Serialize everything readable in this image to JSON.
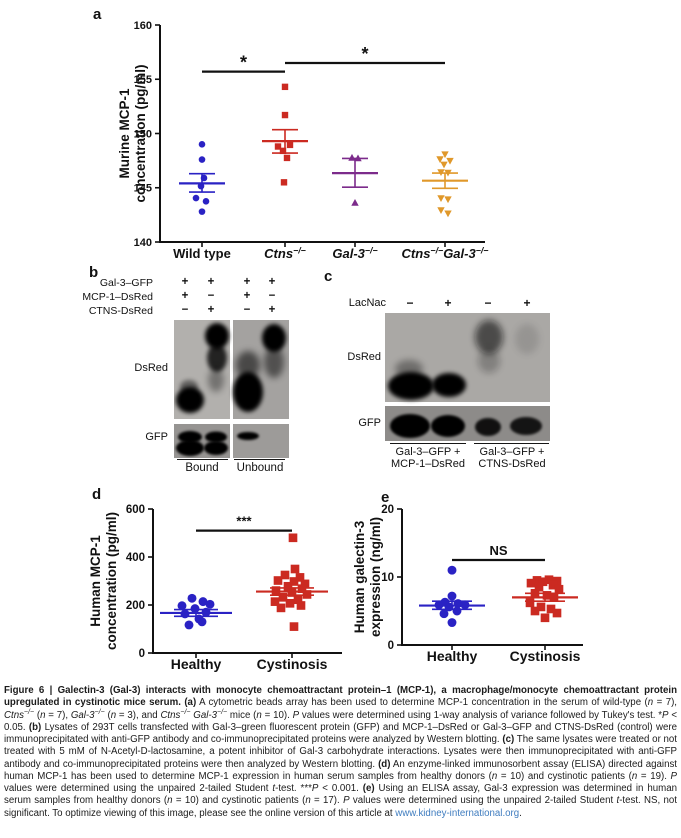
{
  "figure": {
    "panels": {
      "a": "a",
      "b": "b",
      "c": "c",
      "d": "d",
      "e": "e"
    }
  },
  "chart_data": [
    {
      "id": "a",
      "type": "scatter",
      "title": "",
      "ylabel_lines": [
        "Murine MCP-1",
        "concentration (pg/ml)"
      ],
      "ylabel": "Murine MCP-1 concentration (pg/ml)",
      "ylim": [
        140,
        160
      ],
      "yticks": [
        140,
        145,
        150,
        155,
        160
      ],
      "grid": false,
      "groups": [
        {
          "name": "Wild type",
          "label_segments": [
            {
              "t": "Wild type"
            }
          ],
          "marker": "circle",
          "color": "#2a22c4",
          "n": 7,
          "points": [
            [
              0,
              149.0
            ],
            [
              0,
              147.6
            ],
            [
              2,
              145.9
            ],
            [
              -1,
              145.15
            ],
            [
              -6,
              144.05
            ],
            [
              4,
              143.75
            ],
            [
              0,
              142.8
            ]
          ],
          "mean": 145.4,
          "err_lo": 144.6,
          "err_hi": 146.3
        },
        {
          "name": "Ctns-/-",
          "label_segments": [
            {
              "t": "Ctns",
              "i": true
            },
            {
              "t": "−/−",
              "i": true,
              "sup": true
            }
          ],
          "marker": "square",
          "color": "#cb2a21",
          "n": 7,
          "points": [
            [
              0,
              154.3
            ],
            [
              0,
              151.7
            ],
            [
              -7,
              148.8
            ],
            [
              5,
              148.95
            ],
            [
              -2,
              148.4
            ],
            [
              2,
              147.75
            ],
            [
              -1,
              145.5
            ]
          ],
          "mean": 149.3,
          "err_lo": 148.2,
          "err_hi": 150.35
        },
        {
          "name": "Gal-3-/-",
          "label_segments": [
            {
              "t": "Gal-3",
              "i": true
            },
            {
              "t": "−/−",
              "i": true,
              "sup": true
            }
          ],
          "marker": "triangle-up",
          "color": "#7c2b8b",
          "n": 3,
          "points": [
            [
              -3,
              147.75
            ],
            [
              3,
              147.7
            ],
            [
              0,
              143.6
            ]
          ],
          "mean": 146.35,
          "err_lo": 145.05,
          "err_hi": 147.7
        },
        {
          "name": "Ctns-/-Gal-3-/-",
          "label_segments": [
            {
              "t": "Ctns",
              "i": true
            },
            {
              "t": "−/−",
              "i": true,
              "sup": true
            },
            {
              "t": "Gal-3",
              "i": true
            },
            {
              "t": "−/−",
              "i": true,
              "sup": true
            }
          ],
          "marker": "triangle-down",
          "color": "#e0982a",
          "n": 10,
          "points": [
            [
              0,
              148.1
            ],
            [
              -5,
              147.65
            ],
            [
              5,
              147.5
            ],
            [
              -1,
              147.15
            ],
            [
              -4,
              146.45
            ],
            [
              3,
              146.4
            ],
            [
              -4,
              144.05
            ],
            [
              3,
              143.95
            ],
            [
              -4,
              142.95
            ],
            [
              3,
              142.65
            ]
          ],
          "mean": 145.65,
          "err_lo": 144.95,
          "err_hi": 146.35
        }
      ],
      "sig": [
        {
          "from": 0,
          "to": 1,
          "y": 155.7,
          "label": "*"
        },
        {
          "from": 1,
          "to": 3,
          "y": 156.5,
          "label": "*"
        }
      ]
    },
    {
      "id": "d",
      "type": "scatter",
      "title": "",
      "ylabel_lines": [
        "Human MCP-1",
        "concentration (pg/ml)"
      ],
      "ylabel": "Human MCP-1 concentration (pg/ml)",
      "ylim": [
        0,
        600
      ],
      "yticks": [
        0,
        200,
        400,
        600
      ],
      "grid": false,
      "groups": [
        {
          "name": "Healthy",
          "label_segments": [
            {
              "t": "Healthy"
            }
          ],
          "marker": "circle",
          "color": "#2a22c4",
          "n": 10,
          "points": [
            [
              -4,
              228
            ],
            [
              7,
              214
            ],
            [
              -14,
              197
            ],
            [
              14,
              203
            ],
            [
              -1,
              185
            ],
            [
              10,
              170
            ],
            [
              -11,
              163
            ],
            [
              3,
              142
            ],
            [
              -7,
              117
            ],
            [
              6,
              130
            ]
          ],
          "mean": 167,
          "err_lo": 153,
          "err_hi": 181
        },
        {
          "name": "Cystinosis",
          "label_segments": [
            {
              "t": "Cystinosis"
            }
          ],
          "marker": "square",
          "color": "#cb2a21",
          "n": 19,
          "points": [
            [
              1,
              480
            ],
            [
              3,
              350
            ],
            [
              -7,
              325
            ],
            [
              8,
              315
            ],
            [
              -14,
              302
            ],
            [
              2,
              298
            ],
            [
              13,
              288
            ],
            [
              -4,
              278
            ],
            [
              10,
              268
            ],
            [
              -16,
              260
            ],
            [
              0,
              252
            ],
            [
              15,
              244
            ],
            [
              -9,
              232
            ],
            [
              6,
              222
            ],
            [
              -17,
              214
            ],
            [
              -2,
              207
            ],
            [
              9,
              198
            ],
            [
              -11,
              188
            ],
            [
              2,
              110
            ]
          ],
          "mean": 256,
          "err_lo": 241,
          "err_hi": 271
        }
      ],
      "sig": [
        {
          "from": 0,
          "to": 1,
          "y": 510,
          "label": "***"
        }
      ]
    },
    {
      "id": "e",
      "type": "scatter",
      "title": "",
      "ylabel_lines": [
        "Human galectin-3",
        "expression (ng/ml)"
      ],
      "ylabel": "Human galectin-3 expression (ng/ml)",
      "ylim": [
        0,
        20
      ],
      "yticks": [
        0,
        10,
        20
      ],
      "grid": false,
      "groups": [
        {
          "name": "Healthy",
          "label_segments": [
            {
              "t": "Healthy"
            }
          ],
          "marker": "circle",
          "color": "#2a22c4",
          "n": 10,
          "points": [
            [
              0,
              11.0
            ],
            [
              0,
              7.2
            ],
            [
              -7,
              6.3
            ],
            [
              6,
              6.1
            ],
            [
              -13,
              5.9
            ],
            [
              13,
              5.9
            ],
            [
              -3,
              5.6
            ],
            [
              5,
              5.0
            ],
            [
              -8,
              4.6
            ],
            [
              0,
              3.3
            ]
          ],
          "mean": 5.8,
          "err_lo": 5.25,
          "err_hi": 6.45
        },
        {
          "name": "Cystinosis",
          "label_segments": [
            {
              "t": "Cystinosis"
            }
          ],
          "marker": "square",
          "color": "#cb2a21",
          "n": 17,
          "points": [
            [
              4,
              9.6
            ],
            [
              -8,
              9.5
            ],
            [
              12,
              9.4
            ],
            [
              -2,
              9.3
            ],
            [
              -14,
              9.1
            ],
            [
              8,
              8.8
            ],
            [
              -6,
              8.5
            ],
            [
              14,
              8.2
            ],
            [
              -10,
              7.6
            ],
            [
              2,
              7.3
            ],
            [
              9,
              7.0
            ],
            [
              -15,
              6.2
            ],
            [
              -4,
              5.6
            ],
            [
              6,
              5.3
            ],
            [
              -10,
              5.0
            ],
            [
              12,
              4.7
            ],
            [
              0,
              4.0
            ]
          ],
          "mean": 7.0,
          "err_lo": 6.45,
          "err_hi": 7.6
        }
      ],
      "sig": [
        {
          "from": 0,
          "to": 1,
          "y": 12.5,
          "label": "NS"
        }
      ]
    }
  ],
  "panel_b": {
    "rows": [
      {
        "label": "Gal-3–GFP",
        "signs": [
          "+",
          "+",
          "+",
          "+"
        ]
      },
      {
        "label": "MCP-1–DsRed",
        "signs": [
          "+",
          "−",
          "+",
          "−"
        ]
      },
      {
        "label": "CTNS-DsRed",
        "signs": [
          "−",
          "+",
          "−",
          "+"
        ]
      }
    ],
    "blot_row_labels": [
      "DsRed",
      "GFP"
    ],
    "lane_group_labels": [
      "Bound",
      "Unbound"
    ]
  },
  "panel_c": {
    "rows": [
      {
        "label": "LacNac",
        "signs": [
          "−",
          "+",
          "−",
          "+"
        ]
      }
    ],
    "blot_row_labels": [
      "DsRed",
      "GFP"
    ],
    "lane_group_labels": [
      [
        "Gal-3–GFP +",
        "MCP-1–DsRed"
      ],
      [
        "Gal-3–GFP +",
        "CTNS-DsRed"
      ]
    ]
  },
  "caption": {
    "link_color": "#3f7cbf",
    "segments": [
      {
        "t": "Figure 6 | Galectin-3 (Gal-3) interacts with monocyte chemoattractant protein–1 (MCP-1), a macrophage/monocyte chemoattractant protein upregulated in cystinotic mice serum. ",
        "b": true
      },
      {
        "t": "(a)",
        "b": true
      },
      {
        "t": " A cytometric beads array has been used to determine MCP-1 concentration in the serum of wild-type ("
      },
      {
        "t": "n",
        "i": true
      },
      {
        "t": " = 7), "
      },
      {
        "t": "Ctns",
        "i": true
      },
      {
        "t": "−/−",
        "i": true,
        "sup": true
      },
      {
        "t": " ("
      },
      {
        "t": "n",
        "i": true
      },
      {
        "t": " = 7), "
      },
      {
        "t": "Gal-3",
        "i": true
      },
      {
        "t": "−/−",
        "i": true,
        "sup": true
      },
      {
        "t": " ("
      },
      {
        "t": "n",
        "i": true
      },
      {
        "t": " = 3), and "
      },
      {
        "t": "Ctns",
        "i": true
      },
      {
        "t": "−/−",
        "i": true,
        "sup": true
      },
      {
        "t": " "
      },
      {
        "t": "Gal-3",
        "i": true
      },
      {
        "t": "−/−",
        "i": true,
        "sup": true
      },
      {
        "t": " mice ("
      },
      {
        "t": "n",
        "i": true
      },
      {
        "t": " = 10). "
      },
      {
        "t": "P",
        "i": true
      },
      {
        "t": " values were determined using 1-way analysis of variance followed by Tukey's test. *"
      },
      {
        "t": "P",
        "i": true
      },
      {
        "t": " < 0.05. "
      },
      {
        "t": "(b)",
        "b": true
      },
      {
        "t": " Lysates of 293T cells transfected with Gal-3–green fluorescent protein (GFP) and MCP-1–DsRed or Gal-3–GFP and CTNS-DsRed (control) were immunoprecipitated with anti-GFP antibody and co-immunoprecipitated proteins were analyzed by Western blotting. "
      },
      {
        "t": "(c)",
        "b": true
      },
      {
        "t": " The same lysates were treated or not treated with 5 mM of N-Acetyl-D-lactosamine, a potent inhibitor of Gal-3 carbohydrate interactions. Lysates were then immunoprecipitated with anti-GFP antibody and co-immunoprecipitated proteins were then analyzed by Western blotting. "
      },
      {
        "t": "(d)",
        "b": true
      },
      {
        "t": " An enzyme-linked immunosorbent assay (ELISA) directed against human MCP-1 has been used to determine MCP-1 expression in human serum samples from healthy donors ("
      },
      {
        "t": "n",
        "i": true
      },
      {
        "t": " = 10) and cystinotic patients ("
      },
      {
        "t": "n",
        "i": true
      },
      {
        "t": " = 19). "
      },
      {
        "t": "P",
        "i": true
      },
      {
        "t": " values were determined using the unpaired 2-tailed Student "
      },
      {
        "t": "t",
        "i": true
      },
      {
        "t": "-test. ***"
      },
      {
        "t": "P",
        "i": true
      },
      {
        "t": " < 0.001. "
      },
      {
        "t": "(e)",
        "b": true
      },
      {
        "t": " Using an ELISA assay, Gal-3 expression was determined in human serum samples from healthy donors ("
      },
      {
        "t": "n",
        "i": true
      },
      {
        "t": " = 10) and cystinotic patients ("
      },
      {
        "t": "n",
        "i": true
      },
      {
        "t": " = 17). "
      },
      {
        "t": "P",
        "i": true
      },
      {
        "t": " values were determined using the unpaired 2-tailed Student "
      },
      {
        "t": "t",
        "i": true
      },
      {
        "t": "-test. NS, not significant. To optimize viewing of this image, please see the online version of this article at "
      },
      {
        "t": "www.kidney-international.org",
        "link": true
      },
      {
        "t": "."
      }
    ]
  }
}
